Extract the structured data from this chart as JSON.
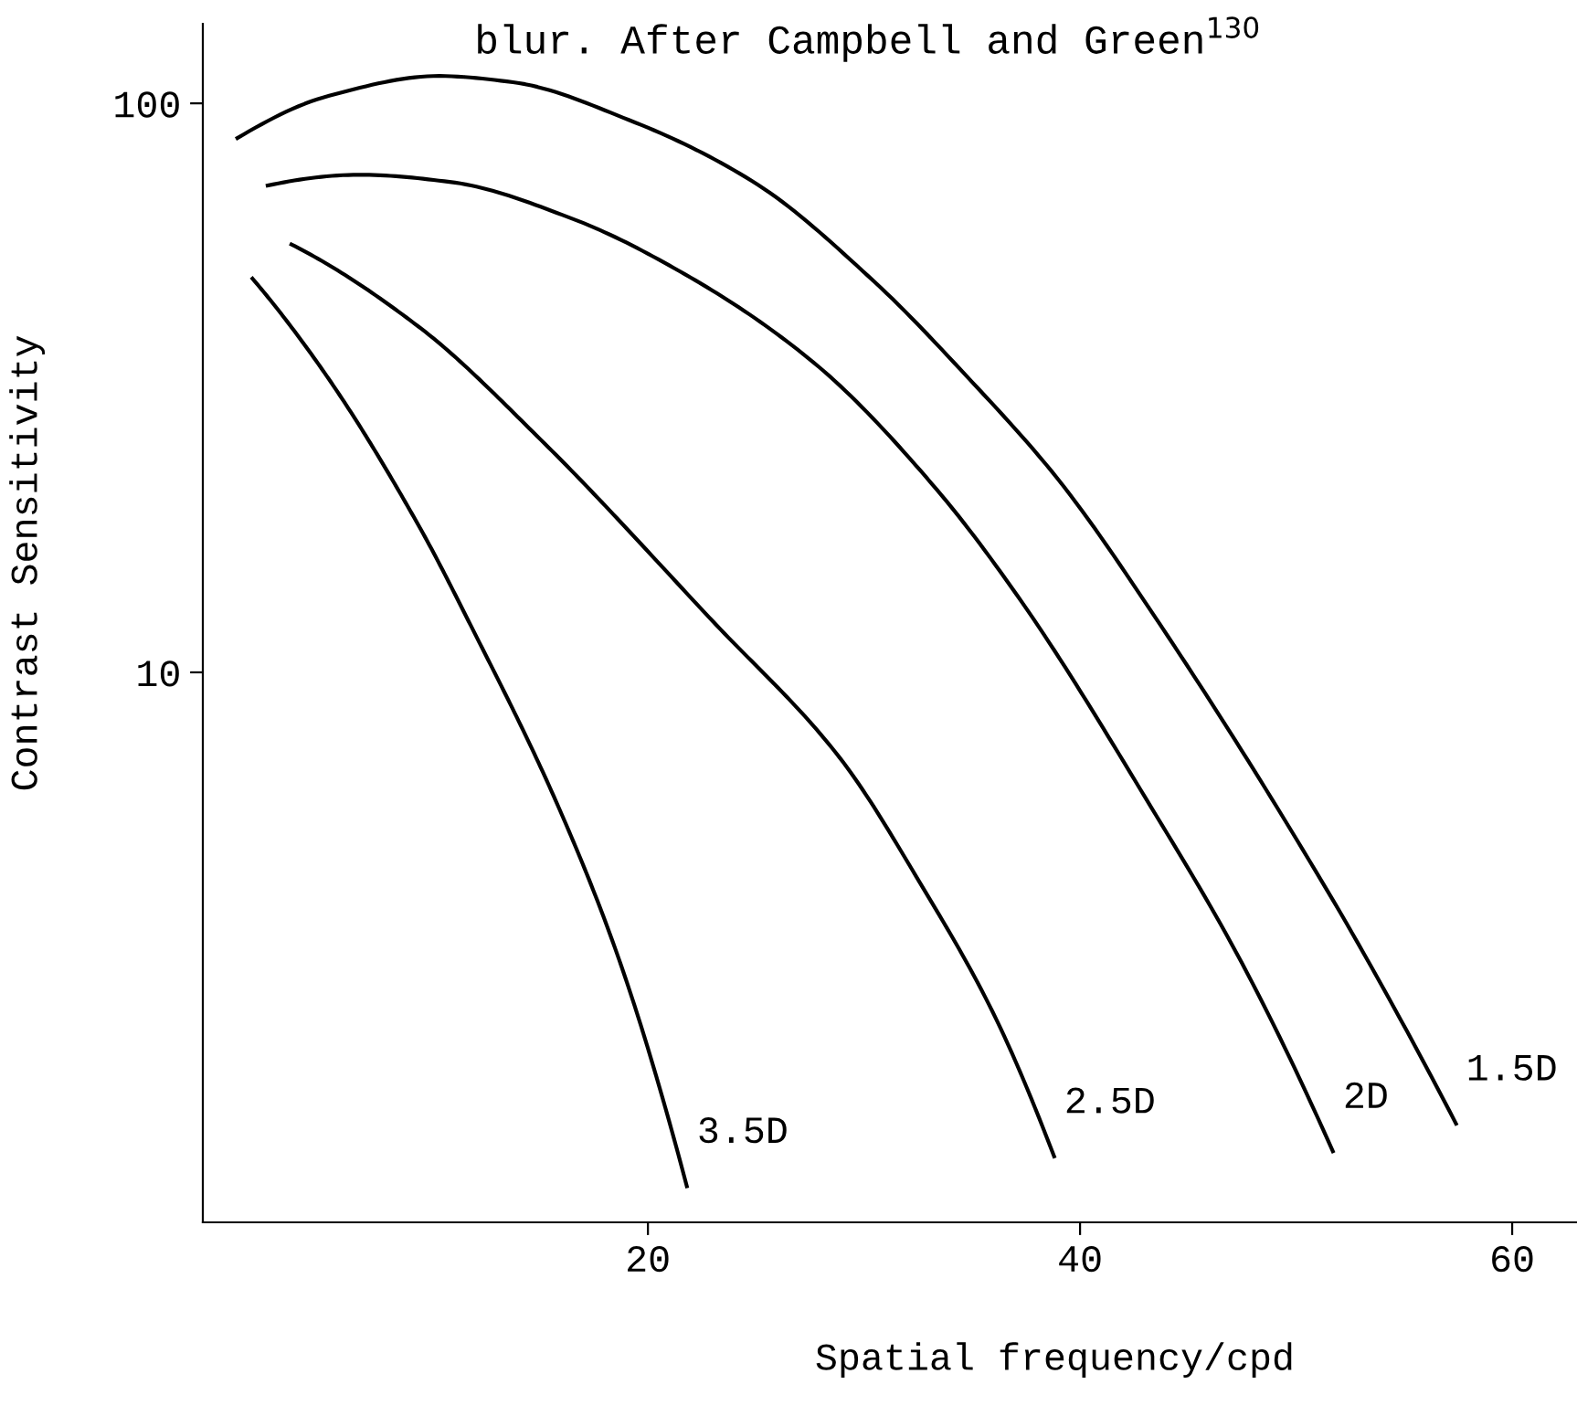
{
  "chart_data": {
    "type": "line",
    "title": "blur. After Campbell and Green$^{130}$",
    "xlabel": "Spatial frequency/cpd",
    "ylabel": "Contrast Sensitivity",
    "log": "y",
    "xlim": [
      -0.6,
      63
    ],
    "ylim": [
      1.08,
      138
    ],
    "xticks": [
      20,
      40,
      60
    ],
    "yticks": [
      10,
      100
    ],
    "grid": false,
    "legend": false,
    "marker": "none",
    "line_style": "solid",
    "series": [
      {
        "name": "1.5D",
        "color": "#000000",
        "x": [
          1.0,
          5.2,
          10.3,
          13.7,
          19.3,
          24.9,
          30.5,
          34.8,
          39.0,
          43.6,
          51.6,
          55.0,
          57.4
        ],
        "values": [
          86.9,
          103,
          111.7,
          109,
          92.9,
          72.7,
          48.5,
          33.0,
          21.8,
          12.3,
          4.04,
          2.39,
          1.61
        ]
      },
      {
        "name": "2D",
        "color": "#000000",
        "x": [
          2.4,
          6.7,
          10.9,
          16.5,
          22.1,
          27.8,
          33.3,
          37.3,
          43.2,
          47.4,
          51.7
        ],
        "values": [
          71.7,
          74.9,
          72.7,
          62.7,
          49.1,
          34.7,
          21.1,
          13.3,
          5.87,
          3.13,
          1.44
        ]
      },
      {
        "name": "2.5D",
        "color": "#000000",
        "x": [
          3.5,
          9.5,
          15.1,
          23.0,
          28.9,
          32.7,
          36.0,
          38.8
        ],
        "values": [
          56.5,
          40.2,
          25.5,
          12.3,
          7.06,
          4.2,
          2.51,
          1.41
        ]
      },
      {
        "name": "3.5D",
        "color": "#000000",
        "x": [
          1.7,
          5.2,
          9.5,
          11.7,
          15.8,
          18.7,
          21.8
        ],
        "values": [
          49.2,
          32.9,
          17.8,
          12.3,
          5.87,
          3.1,
          1.25
        ]
      }
    ]
  }
}
